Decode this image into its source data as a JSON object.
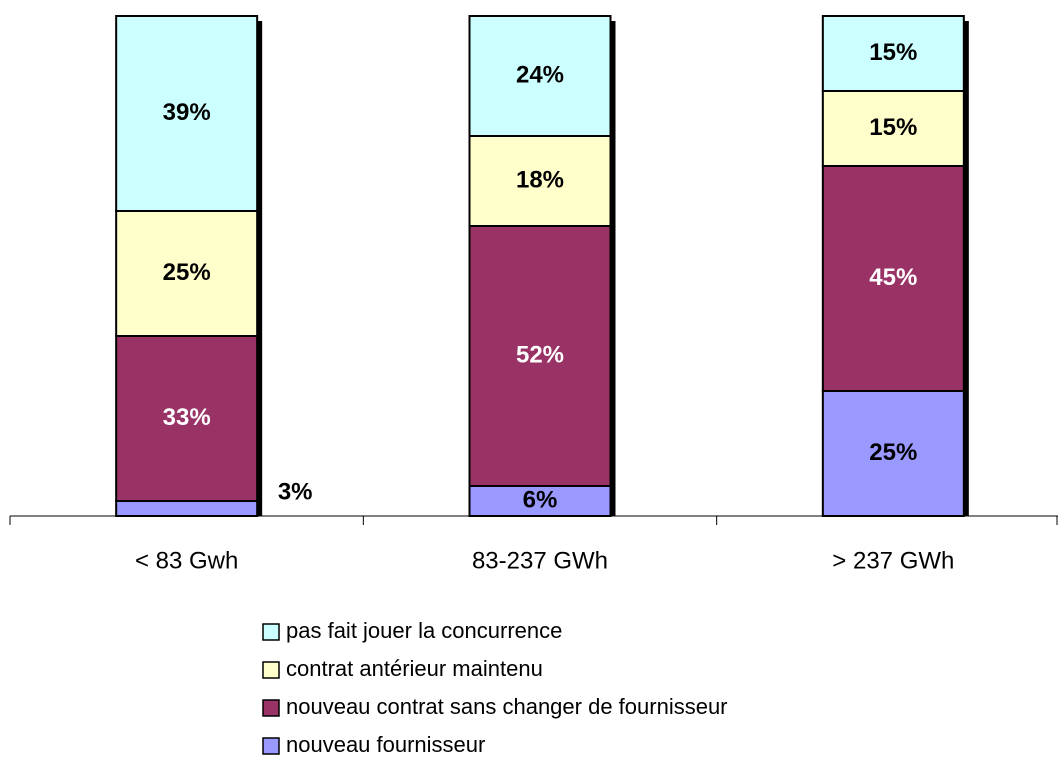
{
  "chart_data": {
    "type": "bar",
    "stacked": true,
    "categories": [
      "< 83 Gwh",
      "83-237 GWh",
      "> 237 GWh"
    ],
    "series": [
      {
        "name": "nouveau fournisseur",
        "color": "#9999ff",
        "label_color": "#000000",
        "values": [
          3,
          6,
          25
        ],
        "value_labels": [
          "3%",
          "6%",
          "25%"
        ]
      },
      {
        "name": "nouveau contrat sans changer de fournisseur",
        "color": "#993366",
        "label_color": "#ffffff",
        "values": [
          33,
          52,
          45
        ],
        "value_labels": [
          "33%",
          "52%",
          "45%"
        ]
      },
      {
        "name": "contrat antérieur maintenu",
        "color": "#ffffcc",
        "label_color": "#000000",
        "values": [
          25,
          18,
          15
        ],
        "value_labels": [
          "25%",
          "18%",
          "15%"
        ]
      },
      {
        "name": "pas fait jouer la concurrence",
        "color": "#ccffff",
        "label_color": "#000000",
        "values": [
          39,
          24,
          15
        ],
        "value_labels": [
          "39%",
          "24%",
          "15%"
        ]
      }
    ]
  }
}
